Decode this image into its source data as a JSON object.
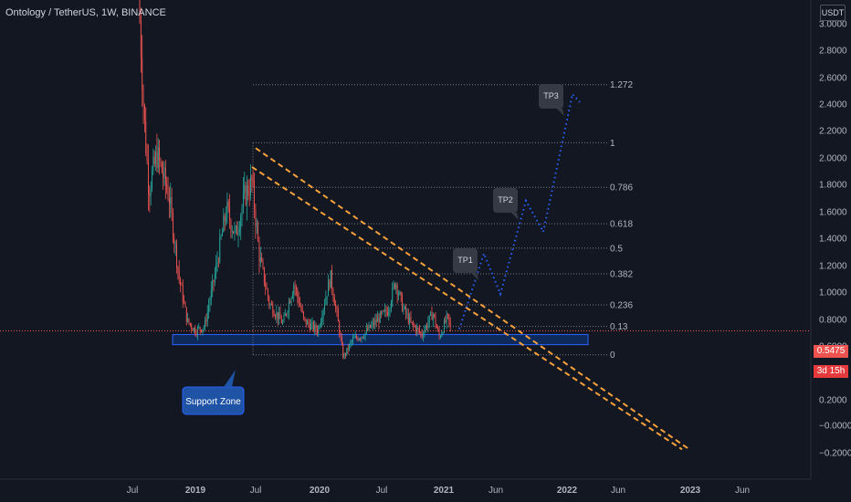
{
  "header": {
    "title": "Ontology / TetherUS, 1W, BINANCE",
    "unit": "USDT"
  },
  "price_axis": {
    "ticks": [
      "3.0000",
      "2.8000",
      "2.6000",
      "2.4000",
      "2.2000",
      "2.0000",
      "1.8000",
      "1.6000",
      "1.4000",
      "1.2000",
      "1.0000",
      "0.8000",
      "0.6000",
      "0.4000",
      "0.2000",
      "0.0000",
      "−0.0000",
      "−0.2000"
    ],
    "last_price": "0.5475",
    "countdown": "3d 15h"
  },
  "time_axis": {
    "ticks": [
      "Jul",
      "2019",
      "Jul",
      "2020",
      "Jul",
      "2021",
      "Jun",
      "2022",
      "Jun",
      "2023",
      "Jun"
    ]
  },
  "colors": {
    "background": "#131722",
    "up": "#26a69a",
    "down": "#ef5350",
    "trendline": "#f7a13b",
    "projection": "#2962ff",
    "support_fill": "#0d2a5a",
    "support_border": "#2962ff",
    "fib": "#787b86",
    "last_price_line": "#ef5350"
  },
  "chart_data": {
    "type": "candlestick",
    "title": "Ontology / TetherUS, 1W, BINANCE",
    "y_unit": "USDT",
    "ylim": [
      -0.32,
      3.05
    ],
    "x_range": [
      "2018-05",
      "2023-08"
    ],
    "support_zone": {
      "label": "Support Zone",
      "low": 0.445,
      "high": 0.52,
      "start": "2018-09",
      "end": "2021-10"
    },
    "fib_levels": [
      {
        "label": "1.272",
        "price": 2.37
      },
      {
        "label": "1",
        "price": 1.94
      },
      {
        "label": "0.786",
        "price": 1.61
      },
      {
        "label": "0.618",
        "price": 1.34
      },
      {
        "label": "0.5",
        "price": 1.16
      },
      {
        "label": "0.382",
        "price": 0.97
      },
      {
        "label": "0.236",
        "price": 0.74
      },
      {
        "label": "0.13",
        "price": 0.58
      },
      {
        "label": "0",
        "price": 0.37
      }
    ],
    "trendlines": [
      {
        "from": {
          "x": 280,
          "price": 1.9
        },
        "to": {
          "x": 755,
          "price": -0.33
        }
      },
      {
        "from": {
          "x": 276,
          "price": 1.76
        },
        "to": {
          "x": 747,
          "price": -0.33
        }
      }
    ],
    "projection": {
      "points": [
        {
          "x": 503,
          "price": 0.56
        },
        {
          "x": 530,
          "price": 1.12
        },
        {
          "x": 548,
          "price": 0.82
        },
        {
          "x": 576,
          "price": 1.51
        },
        {
          "x": 595,
          "price": 1.28
        },
        {
          "x": 627,
          "price": 2.3
        },
        {
          "x": 635,
          "price": 2.24
        }
      ]
    },
    "targets": [
      {
        "label": "TP1",
        "price": 1.12
      },
      {
        "label": "TP2",
        "price": 1.51
      },
      {
        "label": "TP3",
        "price": 2.3
      }
    ],
    "last_price": 0.5475
  }
}
